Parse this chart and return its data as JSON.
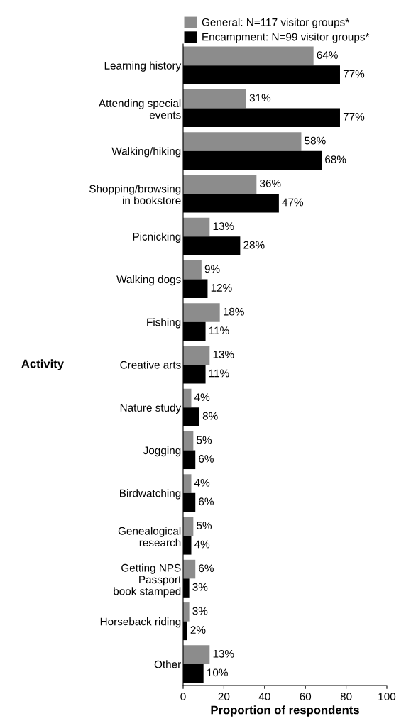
{
  "chart_data": {
    "type": "bar",
    "orientation": "horizontal",
    "xlabel": "Proportion of respondents",
    "ylabel": "Activity",
    "categories": [
      "Learning history",
      "Attending special\nevents",
      "Walking/hiking",
      "Shopping/browsing\nin bookstore",
      "Picnicking",
      "Walking dogs",
      "Fishing",
      "Creative arts",
      "Nature study",
      "Jogging",
      "Birdwatching",
      "Genealogical\nresearch",
      "Getting NPS\nPassport\nbook stamped",
      "Horseback riding",
      "Other"
    ],
    "series": [
      {
        "name": "General: N=117 visitor groups*",
        "color": "#8c8c8c",
        "values": [
          64,
          31,
          58,
          36,
          13,
          9,
          18,
          13,
          4,
          5,
          4,
          5,
          6,
          3,
          13
        ],
        "value_labels": [
          "64%",
          "31%",
          "58%",
          "36%",
          "13%",
          "9%",
          "18%",
          "13%",
          "4%",
          "5%",
          "4%",
          "5%",
          "6%",
          "3%",
          "13%"
        ]
      },
      {
        "name": "Encampment: N=99 visitor groups*",
        "color": "#000000",
        "values": [
          77,
          77,
          68,
          47,
          28,
          12,
          11,
          11,
          8,
          6,
          6,
          4,
          3,
          2,
          10
        ],
        "value_labels": [
          "77%",
          "77%",
          "68%",
          "47%",
          "28%",
          "12%",
          "11%",
          "11%",
          "8%",
          "6%",
          "6%",
          "4%",
          "3%",
          "2%",
          "10%"
        ]
      }
    ],
    "xlim": [
      0,
      100
    ],
    "xticks": [
      0,
      20,
      40,
      60,
      80,
      100
    ],
    "grid": false,
    "legend": "top"
  }
}
